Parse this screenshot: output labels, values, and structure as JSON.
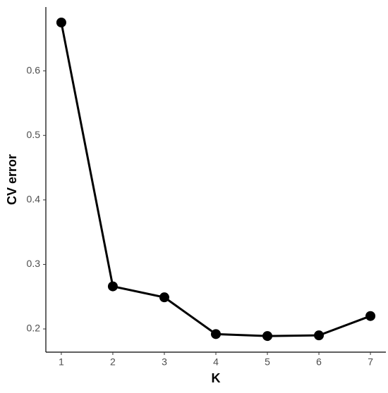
{
  "chart_data": {
    "type": "line",
    "xlabel": "K",
    "ylabel": "CV error",
    "x": [
      1,
      2,
      3,
      4,
      5,
      6,
      7
    ],
    "values": [
      0.675,
      0.266,
      0.249,
      0.192,
      0.189,
      0.19,
      0.22
    ],
    "color": "#000000",
    "xlim": [
      0.7,
      7.3
    ],
    "xticks": [
      1,
      2,
      3,
      4,
      5,
      6,
      7
    ],
    "ylim": [
      0.164,
      0.699
    ],
    "yticks": [
      0.2,
      0.3,
      0.4,
      0.5,
      0.6
    ],
    "grid": false
  }
}
